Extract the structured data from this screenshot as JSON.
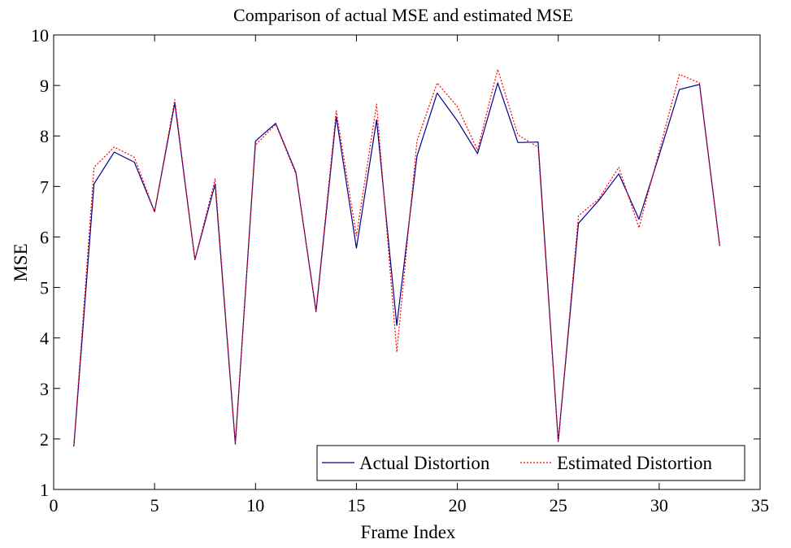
{
  "chart_data": {
    "type": "line",
    "title": "Comparison of actual MSE and estimated MSE",
    "xlabel": "Frame Index",
    "ylabel": "MSE",
    "xlim": [
      0,
      35
    ],
    "ylim": [
      1,
      10
    ],
    "xticks": [
      0,
      5,
      10,
      15,
      20,
      25,
      30,
      35
    ],
    "yticks": [
      1,
      2,
      3,
      4,
      5,
      6,
      7,
      8,
      9,
      10
    ],
    "grid": false,
    "legend_position": "bottom-right",
    "x": [
      1,
      2,
      3,
      4,
      5,
      6,
      7,
      8,
      9,
      10,
      11,
      12,
      13,
      14,
      15,
      16,
      17,
      18,
      19,
      20,
      21,
      22,
      23,
      24,
      25,
      26,
      27,
      28,
      29,
      30,
      31,
      32,
      33
    ],
    "series": [
      {
        "name": "Actual Distortion",
        "color": "#00008b",
        "style": "solid",
        "values": [
          1.85,
          7.05,
          7.68,
          7.48,
          6.5,
          8.65,
          5.55,
          7.05,
          1.9,
          7.9,
          8.25,
          7.28,
          4.52,
          8.38,
          5.78,
          8.32,
          4.25,
          7.6,
          8.85,
          8.3,
          7.65,
          9.05,
          7.87,
          7.88,
          1.95,
          6.27,
          6.72,
          7.25,
          6.35,
          7.62,
          8.92,
          9.02,
          5.82
        ]
      },
      {
        "name": "Estimated Distortion",
        "color": "#ff0000",
        "style": "dotted",
        "values": [
          1.88,
          7.38,
          7.78,
          7.58,
          6.5,
          8.72,
          5.55,
          7.15,
          1.92,
          7.82,
          8.23,
          7.25,
          4.55,
          8.5,
          6.02,
          8.63,
          3.72,
          7.9,
          9.05,
          8.58,
          7.72,
          9.32,
          8.02,
          7.78,
          1.95,
          6.42,
          6.75,
          7.38,
          6.18,
          7.7,
          9.22,
          9.05,
          5.82
        ]
      }
    ]
  }
}
